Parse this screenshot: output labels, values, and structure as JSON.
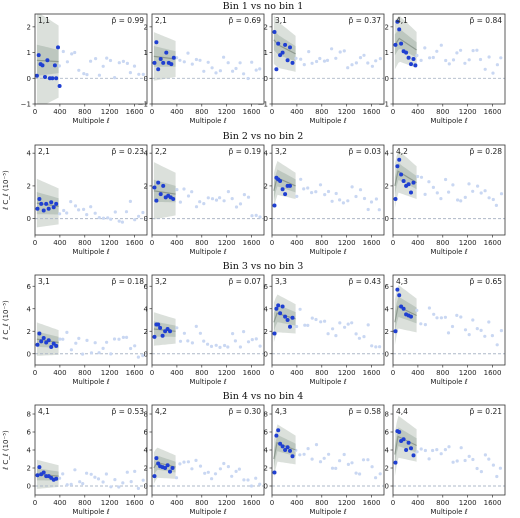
{
  "colors": {
    "accent": "#1f3fd1",
    "faint": "#c9d7f2",
    "band_outer": "#d7ddd7",
    "band_inner": "#b9c4bb",
    "model_line": "#8e9a90",
    "zero_line": "#aeb8c8"
  },
  "chart_data": {
    "type": "scatter",
    "xlabel": "Multipole ℓ",
    "ylabel": "ℓ C_ℓ (10⁻⁵)",
    "xlim": [
      0,
      1800
    ],
    "xticks": [
      0,
      400,
      800,
      1200,
      1600
    ],
    "xtick_labels": [
      "0",
      "400",
      "800",
      "1200",
      "1600"
    ],
    "rows": [
      {
        "title": "Bin 1 vs no bin 1",
        "ylim": [
          -1,
          2.5
        ],
        "yticks": [
          -1,
          0,
          1,
          2
        ],
        "ytick_labels": [
          "−1",
          "0",
          "1",
          "2"
        ],
        "show_ylabel": false,
        "panels": [
          {
            "label": "1,1",
            "pvalue": "p̃ = 0.99",
            "points": [
              [
                30,
                0.1
              ],
              [
                60,
                0.9
              ],
              [
                90,
                0.55
              ],
              [
                120,
                0.5
              ],
              [
                160,
                0.05
              ],
              [
                200,
                0.7
              ],
              [
                240,
                0.0
              ],
              [
                280,
                0.0
              ],
              [
                320,
                0.5
              ],
              [
                340,
                0.0
              ],
              [
                370,
                1.2
              ],
              [
                395,
                -0.3
              ]
            ],
            "model": [
              [
                30,
                0.7
              ],
              [
                380,
                0.65
              ]
            ],
            "band_inner": 0.45,
            "band_outer": 1.4
          },
          {
            "label": "2,1",
            "pvalue": "p̃ = 0.69",
            "points": [
              [
                40,
                0.6
              ],
              [
                70,
                1.4
              ],
              [
                100,
                0.35
              ],
              [
                140,
                0.75
              ],
              [
                180,
                0.6
              ],
              [
                230,
                1.0
              ],
              [
                270,
                0.6
              ],
              [
                310,
                0.55
              ],
              [
                350,
                0.8
              ]
            ],
            "model": [
              [
                30,
                0.85
              ],
              [
                380,
                0.75
              ]
            ],
            "band_inner": 0.3,
            "band_outer": 0.7
          },
          {
            "label": "3,1",
            "pvalue": "p̃ = 0.37",
            "points": [
              [
                40,
                1.8
              ],
              [
                70,
                0.35
              ],
              [
                100,
                1.35
              ],
              [
                130,
                0.9
              ],
              [
                170,
                1.0
              ],
              [
                210,
                1.3
              ],
              [
                250,
                0.7
              ],
              [
                290,
                1.2
              ],
              [
                330,
                0.6
              ]
            ],
            "model": [
              [
                30,
                1.5
              ],
              [
                100,
                1.3
              ],
              [
                380,
                0.95
              ]
            ],
            "band_inner": 0.3,
            "band_outer": 0.7
          },
          {
            "label": "4,1",
            "pvalue": "p̃ = 0.84",
            "points": [
              [
                40,
                1.3
              ],
              [
                70,
                2.2
              ],
              [
                100,
                1.9
              ],
              [
                130,
                1.35
              ],
              [
                170,
                1.05
              ],
              [
                210,
                1.0
              ],
              [
                250,
                0.8
              ],
              [
                290,
                0.55
              ],
              [
                330,
                0.75
              ],
              [
                360,
                0.5
              ]
            ],
            "model": [
              [
                30,
                1.3
              ],
              [
                100,
                1.55
              ],
              [
                380,
                1.1
              ]
            ],
            "band_inner": 0.3,
            "band_outer": 0.7
          }
        ]
      },
      {
        "title": "Bin 2 vs no bin 2",
        "ylim": [
          -1,
          4.5
        ],
        "yticks": [
          0,
          2,
          4
        ],
        "ytick_labels": [
          "0",
          "2",
          "4"
        ],
        "show_ylabel": true,
        "panels": [
          {
            "label": "2,1",
            "pvalue": "p̃ = 0.23",
            "points": [
              [
                40,
                0.6
              ],
              [
                70,
                1.2
              ],
              [
                100,
                0.9
              ],
              [
                140,
                0.5
              ],
              [
                180,
                0.9
              ],
              [
                220,
                0.6
              ],
              [
                260,
                1.0
              ],
              [
                300,
                0.7
              ],
              [
                340,
                0.9
              ]
            ],
            "model": [
              [
                30,
                0.95
              ],
              [
                380,
                0.75
              ]
            ],
            "band_inner": 0.5,
            "band_outer": 1.1
          },
          {
            "label": "2,2",
            "pvalue": "p̃ = 0.19",
            "points": [
              [
                40,
                1.9
              ],
              [
                70,
                1.1
              ],
              [
                100,
                2.2
              ],
              [
                140,
                1.5
              ],
              [
                180,
                2.0
              ],
              [
                220,
                1.3
              ],
              [
                260,
                1.4
              ],
              [
                300,
                1.3
              ],
              [
                340,
                1.2
              ]
            ],
            "model": [
              [
                30,
                1.7
              ],
              [
                380,
                1.5
              ]
            ],
            "band_inner": 0.5,
            "band_outer": 1.3
          },
          {
            "label": "3,2",
            "pvalue": "p̃ = 0.03",
            "points": [
              [
                40,
                0.8
              ],
              [
                70,
                2.5
              ],
              [
                100,
                2.4
              ],
              [
                130,
                2.3
              ],
              [
                170,
                1.8
              ],
              [
                210,
                1.5
              ],
              [
                250,
                2.0
              ],
              [
                290,
                2.0
              ]
            ],
            "model": [
              [
                30,
                1.7
              ],
              [
                80,
                2.5
              ],
              [
                380,
                2.0
              ]
            ],
            "band_inner": 0.4,
            "band_outer": 0.8
          },
          {
            "label": "4,2",
            "pvalue": "p̃ = 0.28",
            "points": [
              [
                40,
                1.2
              ],
              [
                70,
                3.2
              ],
              [
                100,
                3.6
              ],
              [
                130,
                2.7
              ],
              [
                170,
                2.3
              ],
              [
                210,
                2.0
              ],
              [
                250,
                2.1
              ],
              [
                290,
                1.6
              ],
              [
                330,
                2.2
              ]
            ],
            "model": [
              [
                30,
                2.0
              ],
              [
                80,
                2.9
              ],
              [
                380,
                2.2
              ]
            ],
            "band_inner": 0.4,
            "band_outer": 1.0
          }
        ]
      },
      {
        "title": "Bin 3 vs no bin 3",
        "ylim": [
          -1,
          7
        ],
        "yticks": [
          0,
          2,
          4,
          6
        ],
        "ytick_labels": [
          "0",
          "2",
          "4",
          "6"
        ],
        "show_ylabel": true,
        "panels": [
          {
            "label": "3,1",
            "pvalue": "p̃ = 0.18",
            "points": [
              [
                40,
                0.8
              ],
              [
                70,
                1.8
              ],
              [
                100,
                1.1
              ],
              [
                140,
                1.4
              ],
              [
                180,
                1.0
              ],
              [
                220,
                1.2
              ],
              [
                260,
                0.6
              ],
              [
                300,
                0.9
              ],
              [
                340,
                0.7
              ]
            ],
            "model": [
              [
                30,
                1.3
              ],
              [
                380,
                1.0
              ]
            ],
            "band_inner": 0.5,
            "band_outer": 1.1
          },
          {
            "label": "3,2",
            "pvalue": "p̃ = 0.07",
            "points": [
              [
                40,
                1.5
              ],
              [
                70,
                2.6
              ],
              [
                100,
                2.6
              ],
              [
                130,
                2.3
              ],
              [
                170,
                1.6
              ],
              [
                210,
                2.0
              ],
              [
                250,
                2.2
              ],
              [
                290,
                2.0
              ]
            ],
            "model": [
              [
                30,
                2.2
              ],
              [
                380,
                2.0
              ]
            ],
            "band_inner": 0.5,
            "band_outer": 1.1
          },
          {
            "label": "3,3",
            "pvalue": "p̃ = 0.43",
            "points": [
              [
                40,
                1.8
              ],
              [
                70,
                4.0
              ],
              [
                100,
                4.3
              ],
              [
                130,
                3.6
              ],
              [
                170,
                4.2
              ],
              [
                210,
                3.3
              ],
              [
                250,
                3.0
              ],
              [
                290,
                2.4
              ],
              [
                330,
                3.2
              ]
            ],
            "model": [
              [
                30,
                2.8
              ],
              [
                80,
                3.6
              ],
              [
                380,
                3.1
              ]
            ],
            "band_inner": 0.6,
            "band_outer": 1.3
          },
          {
            "label": "4,3",
            "pvalue": "p̃ = 0.65",
            "points": [
              [
                40,
                2.0
              ],
              [
                70,
                5.7
              ],
              [
                100,
                5.2
              ],
              [
                130,
                4.2
              ],
              [
                170,
                4.0
              ],
              [
                210,
                3.5
              ],
              [
                250,
                3.4
              ],
              [
                290,
                3.3
              ]
            ],
            "model": [
              [
                30,
                2.8
              ],
              [
                80,
                4.2
              ],
              [
                380,
                3.4
              ]
            ],
            "band_inner": 0.7,
            "band_outer": 1.5
          }
        ]
      },
      {
        "title": "Bin 4 vs no bin 4",
        "ylim": [
          -1,
          9
        ],
        "yticks": [
          0,
          2,
          4,
          6,
          8
        ],
        "ytick_labels": [
          "0",
          "2",
          "4",
          "6",
          "8"
        ],
        "show_ylabel": true,
        "panels": [
          {
            "label": "4,1",
            "pvalue": "p̃ = 0.53",
            "points": [
              [
                40,
                1.2
              ],
              [
                70,
                2.1
              ],
              [
                100,
                1.3
              ],
              [
                140,
                1.5
              ],
              [
                180,
                1.1
              ],
              [
                220,
                1.1
              ],
              [
                260,
                0.9
              ],
              [
                300,
                0.7
              ],
              [
                340,
                0.8
              ]
            ],
            "model": [
              [
                30,
                1.3
              ],
              [
                380,
                1.1
              ]
            ],
            "band_inner": 0.5,
            "band_outer": 1.2
          },
          {
            "label": "4,2",
            "pvalue": "p̃ = 0.30",
            "points": [
              [
                40,
                1.1
              ],
              [
                70,
                3.1
              ],
              [
                100,
                2.5
              ],
              [
                130,
                2.2
              ],
              [
                170,
                2.1
              ],
              [
                210,
                2.0
              ],
              [
                250,
                2.3
              ],
              [
                290,
                1.6
              ],
              [
                330,
                2.0
              ]
            ],
            "model": [
              [
                30,
                2.0
              ],
              [
                80,
                2.6
              ],
              [
                380,
                2.1
              ]
            ],
            "band_inner": 0.6,
            "band_outer": 1.3
          },
          {
            "label": "4,3",
            "pvalue": "p̃ = 0.58",
            "points": [
              [
                40,
                1.5
              ],
              [
                70,
                5.6
              ],
              [
                100,
                6.2
              ],
              [
                130,
                4.7
              ],
              [
                170,
                4.4
              ],
              [
                210,
                4.0
              ],
              [
                250,
                4.3
              ],
              [
                290,
                3.9
              ],
              [
                330,
                3.3
              ]
            ],
            "model": [
              [
                30,
                3.0
              ],
              [
                80,
                4.8
              ],
              [
                380,
                4.0
              ]
            ],
            "band_inner": 0.7,
            "band_outer": 1.6
          },
          {
            "label": "4,4",
            "pvalue": "p̃ = 0.21",
            "points": [
              [
                40,
                2.6
              ],
              [
                70,
                6.1
              ],
              [
                100,
                6.0
              ],
              [
                130,
                5.0
              ],
              [
                170,
                5.2
              ],
              [
                210,
                4.0
              ],
              [
                250,
                4.8
              ],
              [
                290,
                4.2
              ],
              [
                330,
                3.4
              ]
            ],
            "model": [
              [
                30,
                3.5
              ],
              [
                80,
                5.5
              ],
              [
                380,
                4.5
              ]
            ],
            "band_inner": 0.8,
            "band_outer": 1.8
          }
        ]
      }
    ]
  }
}
